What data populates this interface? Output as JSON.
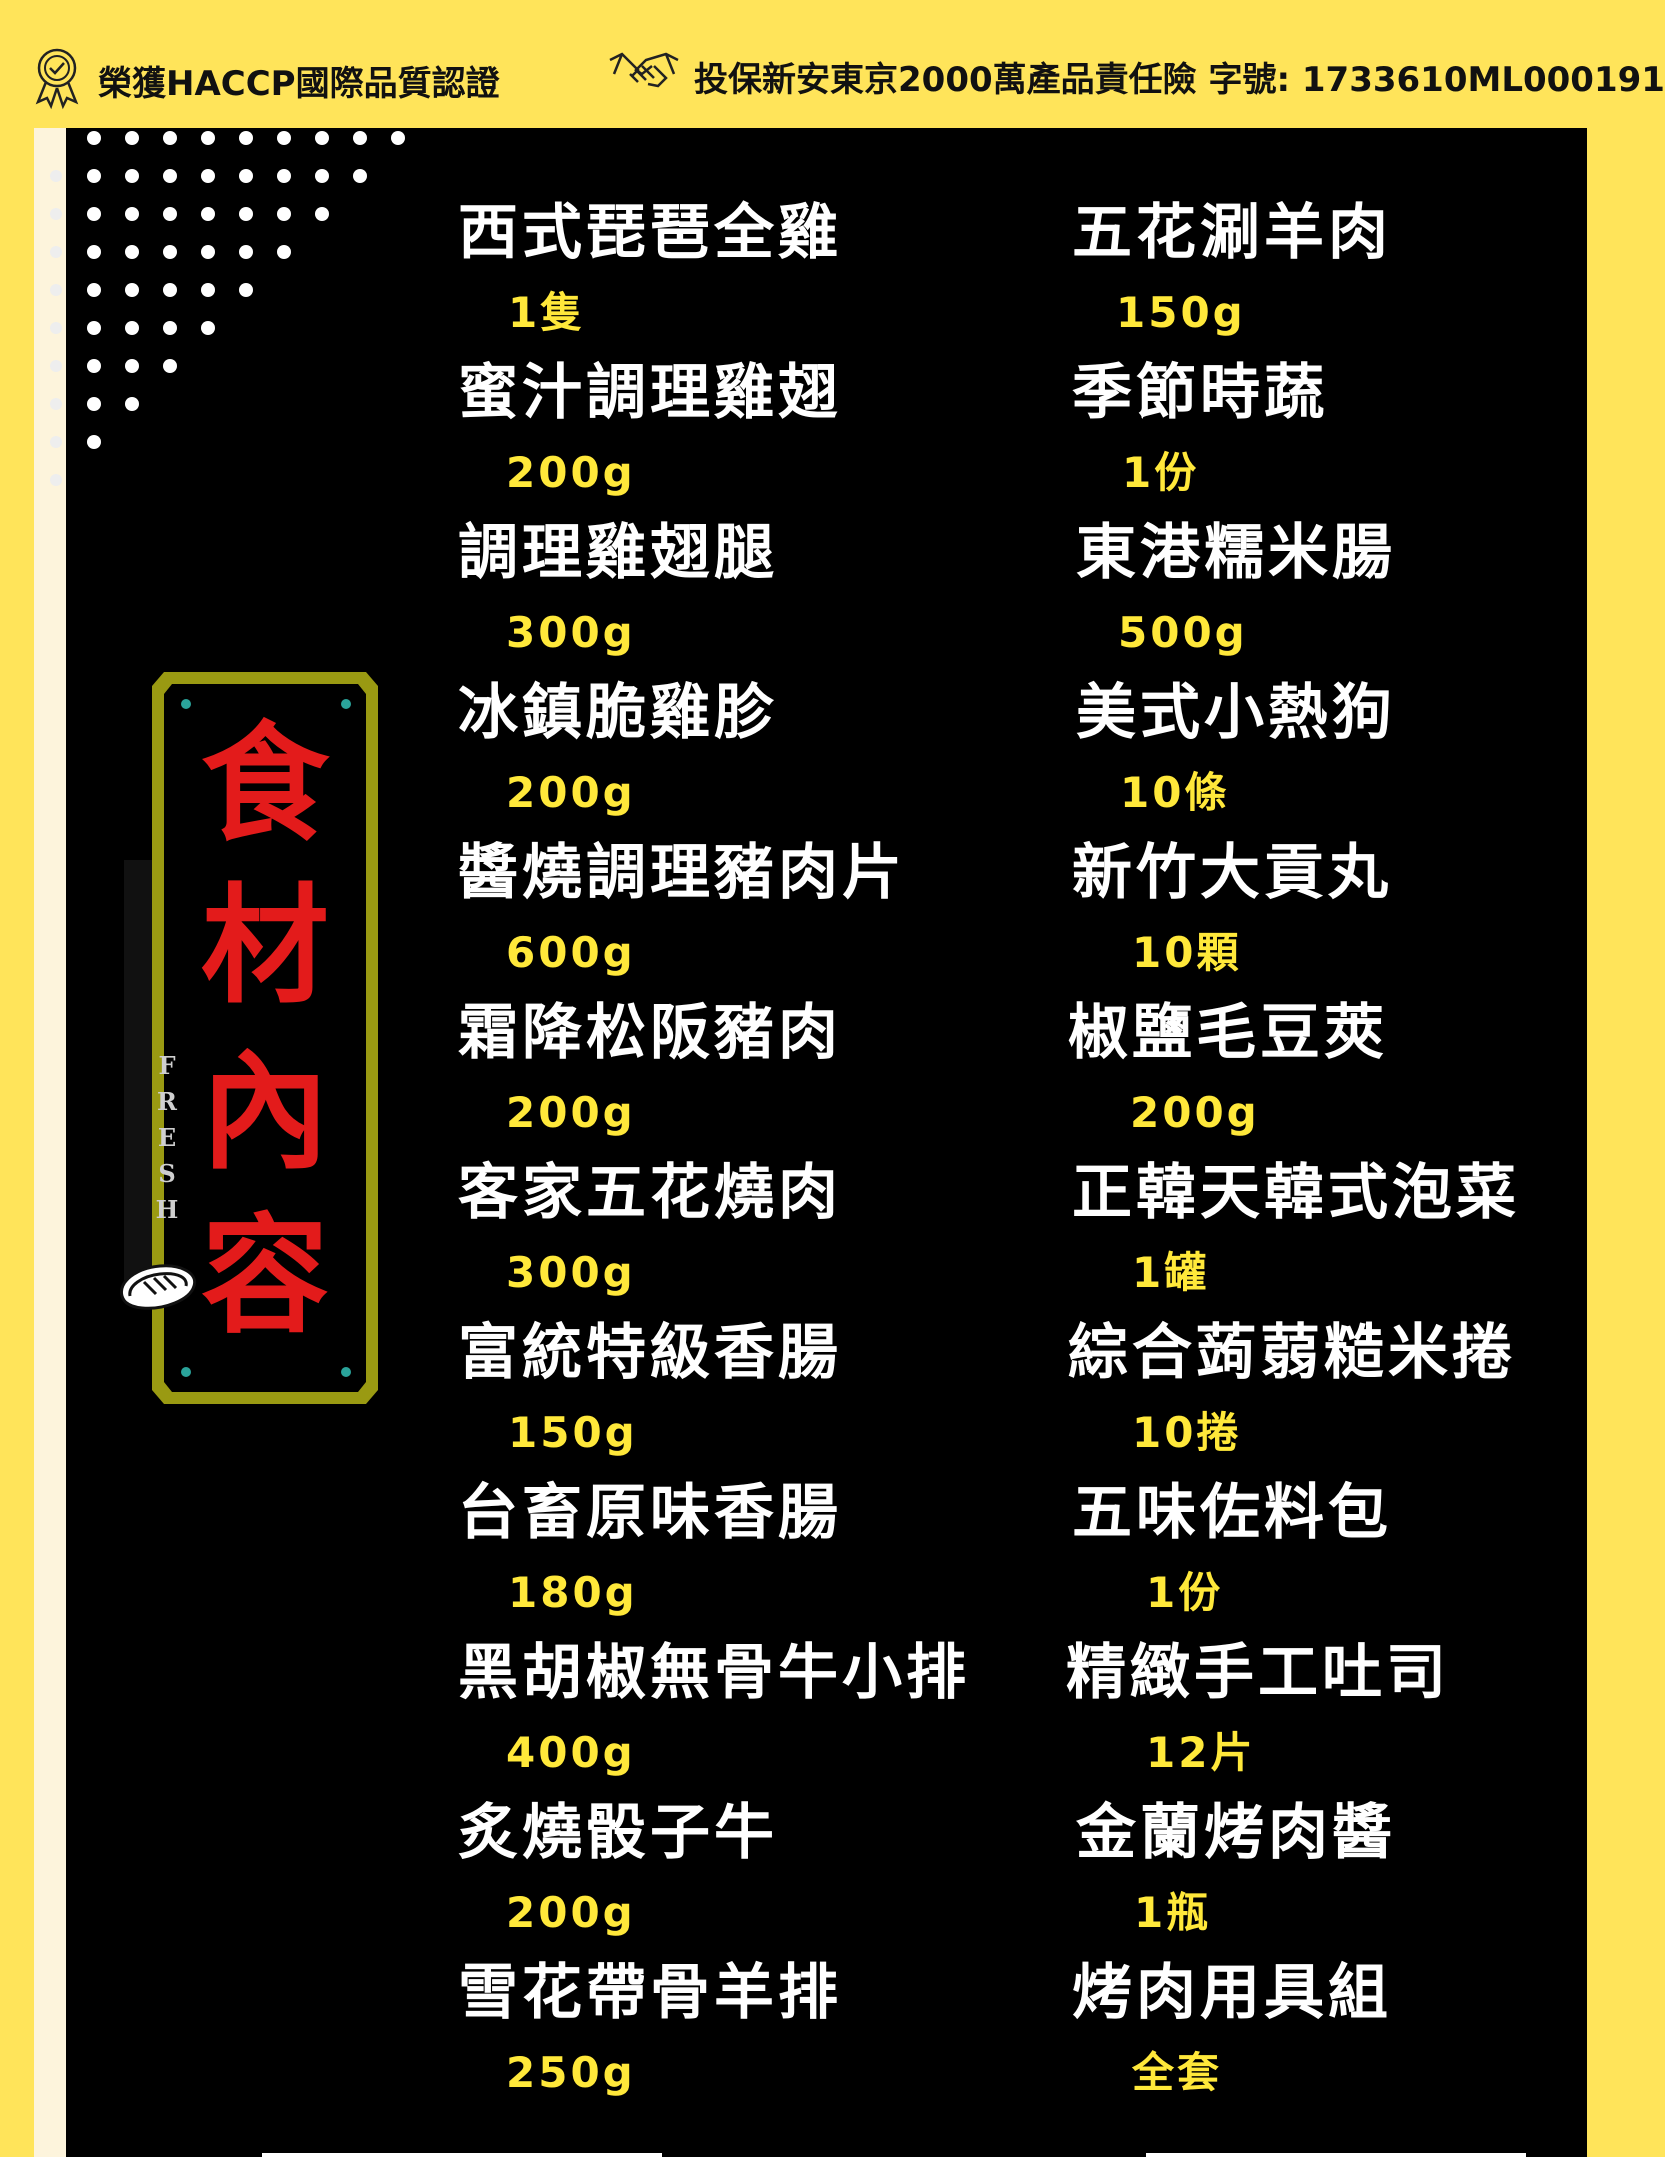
{
  "header": {
    "cert_text": "榮獲HACCP國際品質認證",
    "insurance_text": "投保新安東京2000萬產品責任險 字號: 1733610ML000191",
    "cert_icon": "award-ribbon-icon",
    "insurance_icon": "handshake-icon"
  },
  "sign": {
    "chars": [
      "食",
      "材",
      "內",
      "容"
    ],
    "fresh": [
      "F",
      "R",
      "E",
      "S",
      "H"
    ],
    "meat_icon": "steak-icon"
  },
  "colors": {
    "yellow": "#ffe45a",
    "qty_yellow": "#ffe83a",
    "red": "#e31b1b",
    "panel": "#000000",
    "frame": "#9a9a12"
  },
  "left_items": [
    {
      "name": "西式琵琶全雞",
      "qty": "1隻"
    },
    {
      "name": "蜜汁調理雞翅",
      "qty": "200g"
    },
    {
      "name": "調理雞翅腿",
      "qty": "300g"
    },
    {
      "name": "冰鎮脆雞胗",
      "qty": "200g"
    },
    {
      "name": "醬燒調理豬肉片",
      "qty": "600g"
    },
    {
      "name": "霜降松阪豬肉",
      "qty": "200g"
    },
    {
      "name": "客家五花燒肉",
      "qty": "300g"
    },
    {
      "name": "富統特級香腸",
      "qty": "150g"
    },
    {
      "name": "台畜原味香腸",
      "qty": "180g"
    },
    {
      "name": "黑胡椒無骨牛小排",
      "qty": "400g"
    },
    {
      "name": "炙燒骰子牛",
      "qty": "200g"
    },
    {
      "name": "雪花帶骨羊排",
      "qty": "250g"
    }
  ],
  "right_items": [
    {
      "name": "五花涮羊肉",
      "qty": "150g"
    },
    {
      "name": "季節時蔬",
      "qty": "1份"
    },
    {
      "name": "東港糯米腸",
      "qty": "500g"
    },
    {
      "name": "美式小熱狗",
      "qty": "10條"
    },
    {
      "name": "新竹大貢丸",
      "qty": "10顆"
    },
    {
      "name": "椒鹽毛豆莢",
      "qty": "200g"
    },
    {
      "name": "正韓天韓式泡菜",
      "qty": "1罐"
    },
    {
      "name": "綜合蒟蒻糙米捲",
      "qty": "10捲"
    },
    {
      "name": "五味佐料包",
      "qty": "1份"
    },
    {
      "name": "精緻手工吐司",
      "qty": "12片"
    },
    {
      "name": "金蘭烤肉醬",
      "qty": "1瓶"
    },
    {
      "name": "烤肉用具組",
      "qty": "全套"
    }
  ]
}
